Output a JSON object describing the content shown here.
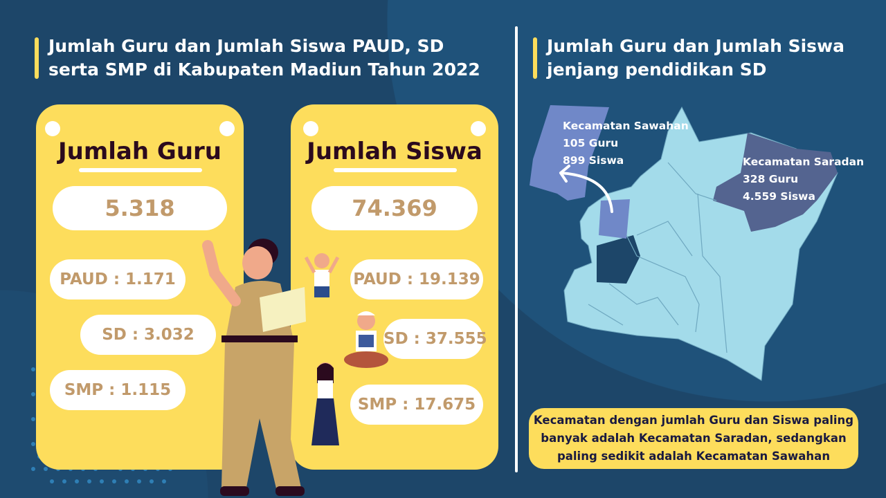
{
  "left_title": "Jumlah Guru dan Jumlah Siswa PAUD, SD serta SMP di Kabupaten Madiun Tahun 2022",
  "right_title": "Jumlah Guru dan Jumlah Siswa jenjang pendidikan SD",
  "guru_card": {
    "heading": "Jumlah Guru",
    "total": "5.318",
    "paud": "PAUD : 1.171",
    "sd": "SD : 3.032",
    "smp": "SMP : 1.115"
  },
  "siswa_card": {
    "heading": "Jumlah Siswa",
    "total": "74.369",
    "paud": "PAUD : 19.139",
    "sd": "SD : 37.555",
    "smp": "SMP : 17.675"
  },
  "map": {
    "sawahan": {
      "name": "Kecamatan Sawahan",
      "guru": "105 Guru",
      "siswa": "899 Siswa",
      "color": "#7088c8"
    },
    "saradan": {
      "name": "Kecamatan Saradan",
      "guru": "328 Guru",
      "siswa": "4.559 Siswa",
      "color": "#546490"
    },
    "base_color": "#a3dbea"
  },
  "conclusion": "Kecamatan dengan jumlah Guru dan Siswa paling banyak adalah Kecamatan Saradan, sedangkan paling sedikit adalah Kecamatan Sawahan",
  "colors": {
    "background": "#1d4669",
    "accent": "#fddd5c",
    "number": "#c19a6b",
    "heading": "#2b0a1e"
  }
}
